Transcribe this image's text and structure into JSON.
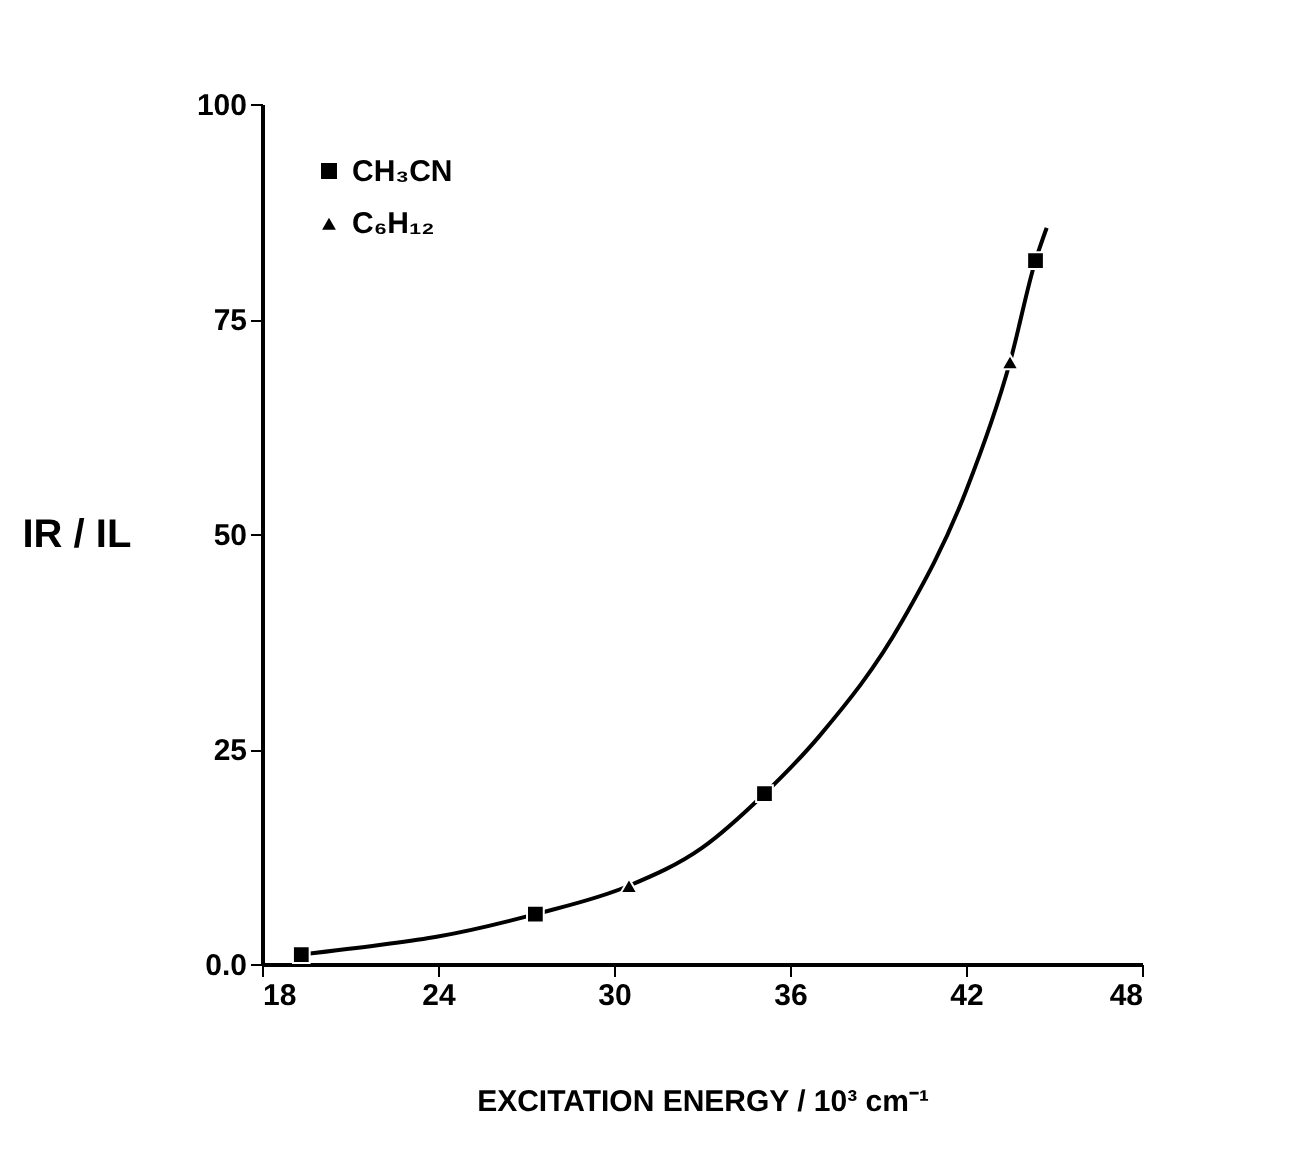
{
  "chart_data": {
    "type": "scatter",
    "xlabel": "EXCITATION ENERGY / 10³ cm⁻¹",
    "ylabel": "IR / IL",
    "xlim": [
      18,
      48
    ],
    "xticks": [
      18,
      24,
      30,
      36,
      42,
      48
    ],
    "ylim": [
      0,
      100
    ],
    "yticks": [
      {
        "value": 0,
        "label": "0.0"
      },
      25,
      50,
      75,
      100
    ],
    "grid": false,
    "legend": "top left",
    "series": [
      {
        "name": "CH₃CN",
        "marker": "square",
        "color": "#000000",
        "x": [
          19.34,
          27.32,
          35.13,
          44.37
        ],
        "values": [
          1.1,
          5.8,
          19.8,
          81.8
        ]
      },
      {
        "name": "C₆H₁₂",
        "marker": "triangle",
        "color": "#000000",
        "x": [
          30.51,
          43.5
        ],
        "values": [
          9.1,
          70.0
        ]
      },
      {
        "type": "line",
        "marker": "none",
        "line_style": "solid",
        "color": "#000000",
        "x": [
          19.34,
          22,
          24,
          27.32,
          30.51,
          33,
          35.13,
          37,
          39.83,
          42.0,
          43.5,
          44.37,
          44.75
        ],
        "values": [
          1.1,
          2.2,
          3.2,
          5.8,
          9.1,
          13.5,
          19.8,
          26.5,
          39.9,
          55.0,
          70.0,
          81.8,
          85.6
        ]
      }
    ]
  }
}
